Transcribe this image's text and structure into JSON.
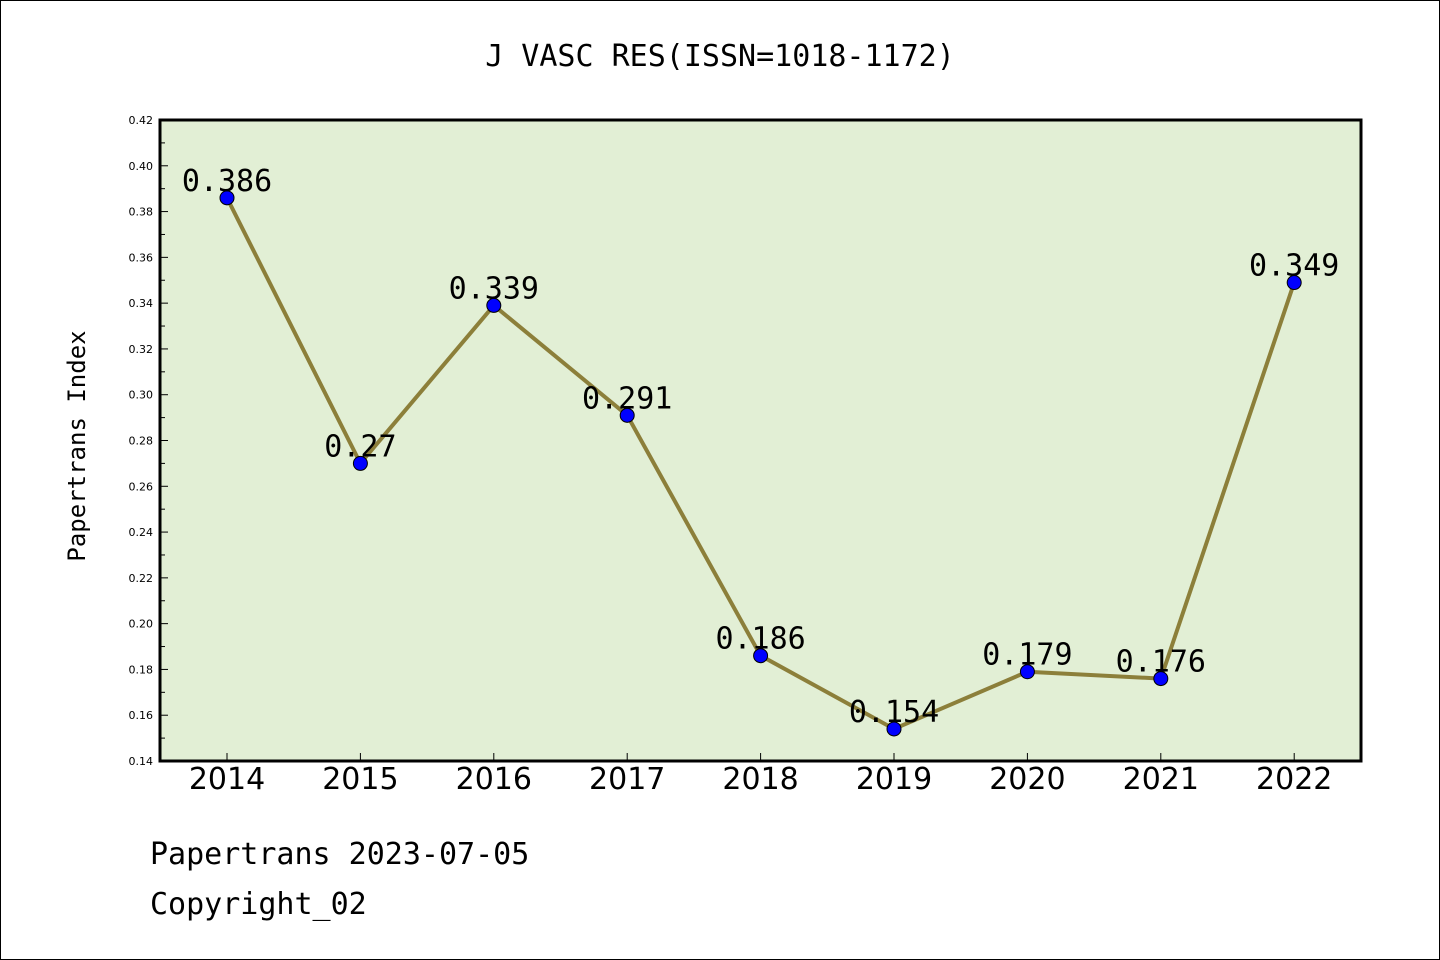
{
  "chart_data": {
    "type": "line",
    "title": "J VASC RES(ISSN=1018-1172)",
    "ylabel": "Papertrans Index",
    "xlabel": "",
    "categories": [
      "2014",
      "2015",
      "2016",
      "2017",
      "2018",
      "2019",
      "2020",
      "2021",
      "2022"
    ],
    "values": [
      0.386,
      0.27,
      0.339,
      0.291,
      0.186,
      0.154,
      0.179,
      0.176,
      0.349
    ],
    "data_labels": [
      "0.386",
      "0.27",
      "0.339",
      "0.291",
      "0.186",
      "0.154",
      "0.179",
      "0.176",
      "0.349"
    ],
    "ylim": [
      0.14,
      0.42
    ],
    "yticks": [
      "0.14",
      "0.16",
      "0.18",
      "0.20",
      "0.22",
      "0.24",
      "0.26",
      "0.28",
      "0.30",
      "0.32",
      "0.34",
      "0.36",
      "0.38",
      "0.40",
      "0.42"
    ],
    "grid": false,
    "legend": "none",
    "colors": {
      "plot_background": "#e2efd5",
      "line": "#8c7f3a",
      "marker": "#0000ff"
    }
  },
  "footer": {
    "line1": "Papertrans 2023-07-05",
    "line2": "Copyright_02"
  }
}
